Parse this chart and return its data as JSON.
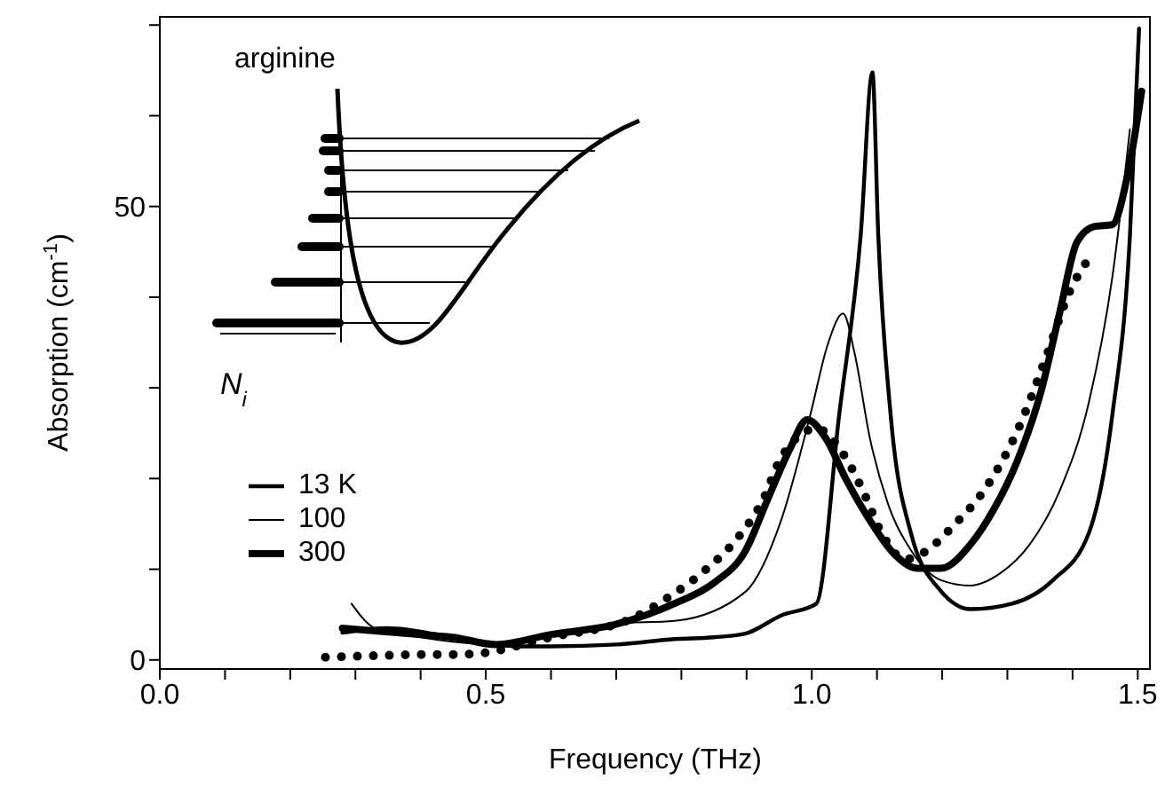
{
  "chart_data": {
    "type": "line",
    "xlabel": "Frequency (THz)",
    "ylabel": "Absorption (cm$^{-1}$)",
    "annotations": [
      "arginine",
      "N$_{i}$"
    ],
    "xlim": [
      0,
      1.52
    ],
    "ylim": [
      -1,
      71
    ],
    "xticks": [
      {
        "value": 0,
        "label": "0.0"
      },
      {
        "value": 0.1,
        "label": null
      },
      {
        "value": 0.2,
        "label": null
      },
      {
        "value": 0.3,
        "label": null
      },
      {
        "value": 0.4,
        "label": null
      },
      {
        "value": 0.5,
        "label": "0.5"
      },
      {
        "value": 0.6,
        "label": null
      },
      {
        "value": 0.7,
        "label": null
      },
      {
        "value": 0.8,
        "label": null
      },
      {
        "value": 0.9,
        "label": null
      },
      {
        "value": 1,
        "label": "1.0"
      },
      {
        "value": 1.1,
        "label": null
      },
      {
        "value": 1.2,
        "label": null
      },
      {
        "value": 1.3,
        "label": null
      },
      {
        "value": 1.4,
        "label": null
      },
      {
        "value": 1.5,
        "label": "1.5"
      }
    ],
    "yticks": [
      0,
      {
        "value": 10,
        "label": null
      },
      {
        "value": 20,
        "label": null
      },
      {
        "value": 30,
        "label": null
      },
      {
        "value": 40,
        "label": null
      },
      50,
      {
        "value": 60,
        "label": null
      },
      {
        "value": 70,
        "label": null
      }
    ],
    "legend": "left",
    "marker": "none",
    "series": [
      {
        "name": "13 K",
        "color": "#000000",
        "line_style": "solid",
        "x": [
          0.28,
          0.35,
          0.45,
          0.55,
          0.6,
          0.7,
          0.79,
          0.85,
          0.898,
          0.953,
          1.007,
          1.042,
          1.075,
          1.093,
          1.102,
          1.121,
          1.152,
          1.198,
          1.244,
          1.307,
          1.37,
          1.425,
          1.461,
          1.488,
          1.502
        ],
        "values": [
          3,
          3.5,
          2.5,
          1.5,
          1.5,
          1.7,
          2.3,
          2.5,
          2.9,
          4.9,
          6.2,
          27,
          46.8,
          64.8,
          46.8,
          27,
          14,
          7.6,
          5.6,
          6.2,
          8.8,
          14,
          27,
          46.8,
          69.6
        ]
      },
      {
        "name": "100",
        "color": "#000000",
        "line_style": "solid",
        "x": [
          0.294,
          0.33,
          0.4,
          0.516,
          0.6,
          0.698,
          0.789,
          0.898,
          0.953,
          0.998,
          1.025,
          1.048,
          1.066,
          1.089,
          1.116,
          1.152,
          1.198,
          1.243,
          1.288,
          1.334,
          1.38,
          1.425,
          1.461,
          1.488
        ],
        "values": [
          6.2,
          3.5,
          2.5,
          1.7,
          2.8,
          4,
          4.3,
          7.5,
          15.4,
          27.1,
          34.9,
          38.2,
          33.7,
          24.5,
          17.4,
          12.1,
          8.8,
          8.2,
          9.5,
          12.7,
          18.6,
          28.4,
          42.2,
          58.5
        ]
      },
      {
        "name": "300",
        "color": "#000000",
        "line_style": "solid",
        "x": [
          0.28,
          0.38,
          0.45,
          0.516,
          0.6,
          0.698,
          0.789,
          0.85,
          0.898,
          0.934,
          0.966,
          0.993,
          1.021,
          1.052,
          1.089,
          1.125,
          1.162,
          1.198,
          1.243,
          1.28,
          1.315,
          1.352,
          1.38,
          1.407,
          1.434,
          1.461,
          1.484,
          1.506
        ],
        "values": [
          3.5,
          2.9,
          2.5,
          1.7,
          2.8,
          3.9,
          6.2,
          8.5,
          12,
          18,
          23.2,
          26.5,
          24.5,
          20,
          15.4,
          11.8,
          10.1,
          10.1,
          12.7,
          16.7,
          21.9,
          29.7,
          38.2,
          46.1,
          47.8,
          48,
          53.3,
          62.7
        ]
      },
      {
        "name": null,
        "color": "#000000",
        "line_style": "dotted",
        "x": [
          0.254,
          0.3,
          0.35,
          0.4,
          0.45,
          0.487,
          0.6,
          0.725,
          0.78,
          0.835,
          0.889,
          0.925,
          0.953,
          1.007,
          1.052,
          1.08,
          1.107,
          1.143,
          1.171,
          1.216,
          1.27,
          1.315,
          1.361,
          1.393,
          1.434
        ],
        "values": [
          0.3,
          0.4,
          0.5,
          0.6,
          0.6,
          0.7,
          2.5,
          4.6,
          6.9,
          9.8,
          13.7,
          17.6,
          22.3,
          25.5,
          22.3,
          18.4,
          14,
          11.1,
          11.8,
          14.7,
          19.3,
          25.2,
          33.7,
          40.2,
          45.1
        ]
      }
    ]
  }
}
